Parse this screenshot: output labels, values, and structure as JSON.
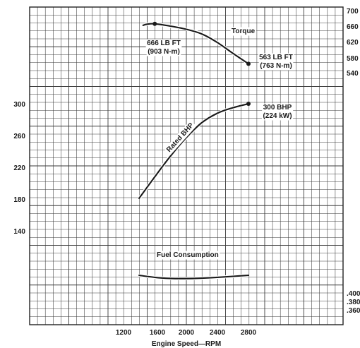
{
  "chart_data": {
    "type": "line",
    "xlabel": "Engine Speed—RPM",
    "x_ticks": [
      "1200",
      "2000",
      "2400",
      "2800"
    ],
    "x_tick_values": [
      1200,
      2000,
      2400,
      2800
    ],
    "extra_x_tick": {
      "label": "1600",
      "value": 1600
    },
    "left_ticks": [
      "300",
      "260",
      "220",
      "180",
      "140"
    ],
    "left_tick_values": [
      300,
      260,
      220,
      180,
      140
    ],
    "right_ticks": [
      "700",
      "660",
      "620",
      "580",
      "540"
    ],
    "right_tick_values": [
      700,
      660,
      620,
      580,
      540
    ],
    "fuel_ticks": [
      ".400",
      ".380",
      ".360"
    ],
    "fuel_tick_values": [
      0.4,
      0.38,
      0.36
    ],
    "xlim": [
      600,
      3700
    ],
    "grid": true,
    "series": [
      {
        "name": "Torque",
        "axis": "right",
        "x": [
          1450,
          1500,
          1600,
          1800,
          2000,
          2200,
          2400,
          2600,
          2800
        ],
        "y": [
          662,
          665,
          666,
          660,
          652,
          640,
          618,
          590,
          563
        ],
        "color": "#1a1a1a"
      },
      {
        "name": "Rated BHP",
        "axis": "left",
        "x": [
          1400,
          1600,
          1800,
          2000,
          2200,
          2400,
          2600,
          2800
        ],
        "y": [
          181,
          208,
          234,
          257,
          276,
          288,
          295,
          300
        ],
        "color": "#1a1a1a"
      },
      {
        "name": "Fuel Consumption",
        "axis": "fuel",
        "x": [
          1400,
          1600,
          1800,
          2000,
          2200,
          2400,
          2600,
          2800
        ],
        "y": [
          0.4417,
          0.4368,
          0.4343,
          0.4338,
          0.4348,
          0.4368,
          0.4392,
          0.4417
        ],
        "color": "#1a1a1a"
      }
    ],
    "annotations": {
      "torque_peak": {
        "line1": "666 LB FT",
        "line2": "(903 N-m)",
        "x": 1600,
        "y": 666
      },
      "torque_end": {
        "line1": "563 LB FT",
        "line2": "(763 N-m)",
        "x": 2800,
        "y": 563
      },
      "bhp_end": {
        "line1": "300 BHP",
        "line2": "(224 kW)",
        "x": 2800,
        "y": 300
      }
    }
  }
}
